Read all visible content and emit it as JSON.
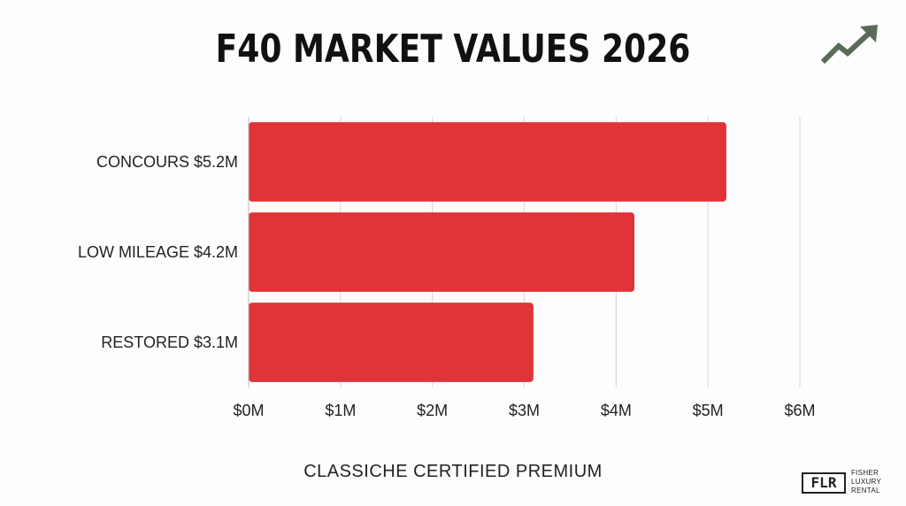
{
  "title": "F40 MARKET VALUES 2026",
  "footer_text": "CLASSICHE CERTIFIED PREMIUM",
  "logo": {
    "mark": "FLR",
    "lines": [
      "FISHER",
      "LUXURY",
      "RENTAL"
    ]
  },
  "trend_icon": {
    "name": "trend-up-arrow-icon",
    "color": "#5a6b58"
  },
  "colors": {
    "bar": "#e03438",
    "grid": "#d6d6d6",
    "text": "#222222"
  },
  "chart_data": {
    "type": "bar",
    "orientation": "horizontal",
    "categories": [
      "CONCOURS $5.2M",
      "LOW MILEAGE $4.2M",
      "RESTORED $3.1M"
    ],
    "values": [
      5.2,
      4.2,
      3.1
    ],
    "unit": "$M",
    "xlim": [
      0,
      6
    ],
    "x_ticks": [
      0,
      1,
      2,
      3,
      4,
      5,
      6
    ],
    "x_tick_labels": [
      "$0M",
      "$1M",
      "$2M",
      "$3M",
      "$4M",
      "$5M",
      "$6M"
    ],
    "grid": true,
    "xlabel": "",
    "ylabel": ""
  }
}
